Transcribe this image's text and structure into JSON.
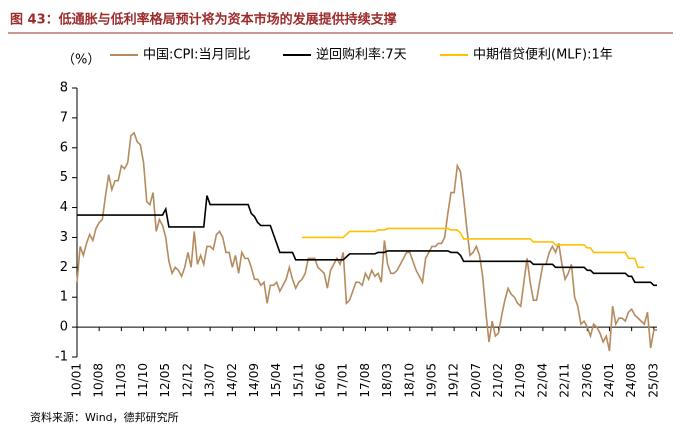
{
  "chart_data": {
    "type": "line",
    "title": "图 43：低通胀与低利率格局预计将为资本市场的发展提供持续支撑",
    "y_label": "（%）",
    "source": "资料来源：Wind，德邦研究所",
    "ylim": [
      -1,
      8
    ],
    "yticks": [
      -1,
      0,
      1,
      2,
      3,
      4,
      5,
      6,
      7,
      8
    ],
    "legend": "top",
    "categories": [
      "10/01",
      null,
      null,
      null,
      null,
      null,
      null,
      "10/08",
      null,
      null,
      null,
      null,
      null,
      null,
      "11/03",
      null,
      null,
      null,
      null,
      null,
      null,
      "11/10",
      null,
      null,
      null,
      null,
      null,
      null,
      "12/05",
      null,
      null,
      null,
      null,
      null,
      null,
      "12/12",
      null,
      null,
      null,
      null,
      null,
      null,
      "13/07",
      null,
      null,
      null,
      null,
      null,
      null,
      "14/02",
      null,
      null,
      null,
      null,
      null,
      null,
      "14/09",
      null,
      null,
      null,
      null,
      null,
      null,
      "15/04",
      null,
      null,
      null,
      null,
      null,
      null,
      "15/11",
      null,
      null,
      null,
      null,
      null,
      null,
      "16/06",
      null,
      null,
      null,
      null,
      null,
      null,
      "17/01",
      null,
      null,
      null,
      null,
      null,
      null,
      "17/08",
      null,
      null,
      null,
      null,
      null,
      null,
      "18/03",
      null,
      null,
      null,
      null,
      null,
      null,
      "18/10",
      null,
      null,
      null,
      null,
      null,
      null,
      "19/05",
      null,
      null,
      null,
      null,
      null,
      null,
      "19/12",
      null,
      null,
      null,
      null,
      null,
      null,
      "20/07",
      null,
      null,
      null,
      null,
      null,
      null,
      "21/02",
      null,
      null,
      null,
      null,
      null,
      null,
      "21/09",
      null,
      null,
      null,
      null,
      null,
      null,
      "22/04",
      null,
      null,
      null,
      null,
      null,
      null,
      "22/11",
      null,
      null,
      null,
      null,
      null,
      null,
      "23/06",
      null,
      null,
      null,
      null,
      null,
      null,
      "24/01",
      null,
      null,
      null,
      null,
      null,
      null,
      "24/08",
      null,
      null,
      null,
      null,
      null,
      null,
      "25/03",
      null
    ],
    "series": [
      {
        "name": "中国:CPI:当月同比",
        "color": "#b58b5e",
        "values": [
          1.5,
          2.7,
          2.4,
          2.8,
          3.1,
          2.9,
          3.3,
          3.5,
          3.6,
          4.4,
          5.1,
          4.6,
          4.9,
          4.9,
          5.4,
          5.3,
          5.5,
          6.4,
          6.5,
          6.2,
          6.1,
          5.5,
          4.2,
          4.1,
          4.5,
          3.2,
          3.6,
          3.4,
          3.0,
          2.2,
          1.8,
          2.0,
          1.9,
          1.7,
          2.0,
          2.5,
          2.0,
          3.2,
          2.1,
          2.4,
          2.1,
          2.7,
          2.7,
          2.6,
          3.1,
          3.2,
          3.0,
          2.5,
          2.5,
          2.0,
          2.4,
          1.8,
          2.5,
          2.3,
          2.3,
          2.0,
          1.6,
          1.6,
          1.4,
          1.5,
          0.8,
          1.4,
          1.4,
          1.5,
          1.2,
          1.4,
          1.6,
          2.0,
          1.6,
          1.3,
          1.5,
          1.6,
          1.8,
          2.3,
          2.3,
          2.3,
          2.0,
          1.9,
          1.8,
          1.3,
          1.9,
          2.1,
          2.3,
          2.1,
          2.5,
          0.8,
          0.9,
          1.2,
          1.5,
          1.5,
          1.4,
          1.8,
          1.6,
          1.9,
          1.7,
          1.8,
          1.5,
          2.9,
          2.1,
          1.8,
          1.8,
          1.9,
          2.1,
          2.3,
          2.5,
          2.5,
          2.2,
          1.9,
          1.7,
          1.5,
          2.3,
          2.5,
          2.7,
          2.7,
          2.8,
          2.8,
          3.0,
          3.8,
          4.5,
          4.5,
          5.4,
          5.2,
          4.3,
          3.3,
          2.4,
          2.5,
          2.7,
          2.4,
          1.7,
          0.5,
          -0.5,
          0.2,
          -0.3,
          -0.2,
          0.4,
          0.9,
          1.3,
          1.1,
          1.0,
          0.8,
          0.7,
          1.5,
          2.3,
          1.5,
          0.9,
          0.9,
          1.5,
          2.1,
          2.1,
          2.5,
          2.7,
          2.5,
          2.8,
          2.1,
          1.6,
          1.8,
          2.1,
          1.0,
          0.7,
          0.1,
          0.2,
          0.0,
          -0.3,
          0.1,
          0.0,
          -0.2,
          -0.5,
          -0.3,
          -0.8,
          0.7,
          0.1,
          0.3,
          0.3,
          0.2,
          0.5,
          0.6,
          0.4,
          0.3,
          0.2,
          0.1,
          0.5,
          -0.7,
          -0.1,
          -0.1
        ]
      },
      {
        "name": "逆回购利率:7天",
        "color": "#000000",
        "values": [
          3.75,
          3.75,
          3.75,
          3.75,
          3.75,
          3.75,
          3.75,
          3.75,
          3.75,
          3.75,
          3.75,
          3.75,
          3.75,
          3.75,
          3.75,
          3.75,
          3.75,
          3.75,
          3.75,
          3.75,
          3.75,
          3.75,
          3.75,
          3.75,
          3.75,
          3.75,
          3.75,
          3.75,
          3.95,
          3.35,
          3.35,
          3.35,
          3.35,
          3.35,
          3.35,
          3.35,
          3.35,
          3.35,
          3.35,
          3.35,
          3.35,
          4.4,
          4.1,
          4.1,
          4.1,
          4.1,
          4.1,
          4.1,
          4.1,
          4.1,
          4.1,
          4.1,
          4.1,
          4.1,
          4.1,
          3.8,
          3.7,
          3.5,
          3.4,
          3.4,
          3.4,
          3.4,
          3.1,
          2.8,
          2.5,
          2.5,
          2.5,
          2.5,
          2.5,
          2.25,
          2.25,
          2.25,
          2.25,
          2.25,
          2.25,
          2.25,
          2.25,
          2.25,
          2.25,
          2.25,
          2.25,
          2.25,
          2.25,
          2.25,
          2.25,
          2.35,
          2.45,
          2.45,
          2.45,
          2.45,
          2.45,
          2.45,
          2.45,
          2.45,
          2.45,
          2.5,
          2.5,
          2.5,
          2.55,
          2.55,
          2.55,
          2.55,
          2.55,
          2.55,
          2.55,
          2.55,
          2.55,
          2.55,
          2.55,
          2.55,
          2.55,
          2.55,
          2.55,
          2.55,
          2.55,
          2.55,
          2.55,
          2.55,
          2.5,
          2.5,
          2.5,
          2.4,
          2.2,
          2.2,
          2.2,
          2.2,
          2.2,
          2.2,
          2.2,
          2.2,
          2.2,
          2.2,
          2.2,
          2.2,
          2.2,
          2.2,
          2.2,
          2.2,
          2.2,
          2.2,
          2.2,
          2.2,
          2.2,
          2.2,
          2.1,
          2.1,
          2.1,
          2.1,
          2.1,
          2.1,
          2.1,
          2.0,
          2.0,
          2.0,
          2.0,
          2.0,
          2.0,
          2.0,
          2.0,
          2.0,
          2.0,
          1.9,
          1.9,
          1.8,
          1.8,
          1.8,
          1.8,
          1.8,
          1.8,
          1.8,
          1.8,
          1.8,
          1.8,
          1.8,
          1.7,
          1.7,
          1.5,
          1.5,
          1.5,
          1.5,
          1.5,
          1.5,
          1.4,
          1.4
        ]
      },
      {
        "name": "中期借贷便利(MLF):1年",
        "color": "#ffc000",
        "values": [
          null,
          null,
          null,
          null,
          null,
          null,
          null,
          null,
          null,
          null,
          null,
          null,
          null,
          null,
          null,
          null,
          null,
          null,
          null,
          null,
          null,
          null,
          null,
          null,
          null,
          null,
          null,
          null,
          null,
          null,
          null,
          null,
          null,
          null,
          null,
          null,
          null,
          null,
          null,
          null,
          null,
          null,
          null,
          null,
          null,
          null,
          null,
          null,
          null,
          null,
          null,
          null,
          null,
          null,
          null,
          null,
          null,
          null,
          null,
          null,
          null,
          null,
          null,
          null,
          null,
          null,
          null,
          null,
          null,
          null,
          null,
          3.0,
          3.0,
          3.0,
          3.0,
          3.0,
          3.0,
          3.0,
          3.0,
          3.0,
          3.0,
          3.0,
          3.0,
          3.0,
          3.0,
          3.1,
          3.2,
          3.2,
          3.2,
          3.2,
          3.2,
          3.2,
          3.2,
          3.2,
          3.2,
          3.25,
          3.25,
          3.25,
          3.3,
          3.3,
          3.3,
          3.3,
          3.3,
          3.3,
          3.3,
          3.3,
          3.3,
          3.3,
          3.3,
          3.3,
          3.3,
          3.3,
          3.3,
          3.3,
          3.3,
          3.3,
          3.3,
          3.3,
          3.25,
          3.25,
          3.25,
          3.15,
          2.95,
          2.95,
          2.95,
          2.95,
          2.95,
          2.95,
          2.95,
          2.95,
          2.95,
          2.95,
          2.95,
          2.95,
          2.95,
          2.95,
          2.95,
          2.95,
          2.95,
          2.95,
          2.95,
          2.95,
          2.95,
          2.95,
          2.85,
          2.85,
          2.85,
          2.85,
          2.85,
          2.85,
          2.85,
          2.75,
          2.75,
          2.75,
          2.75,
          2.75,
          2.75,
          2.75,
          2.75,
          2.75,
          2.75,
          2.65,
          2.65,
          2.5,
          2.5,
          2.5,
          2.5,
          2.5,
          2.5,
          2.5,
          2.5,
          2.5,
          2.5,
          2.5,
          2.3,
          2.3,
          2.3,
          2.0,
          2.0,
          2.0,
          null,
          null,
          null,
          null
        ]
      }
    ]
  }
}
